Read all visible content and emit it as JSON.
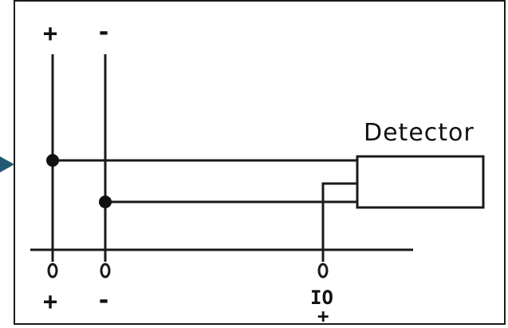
{
  "diagram": {
    "top_left_sign": "+",
    "top_right_sign": "-",
    "bottom_left_sign": "+",
    "bottom_right_sign": "-",
    "detector_label": "Detector",
    "io_label": "IO",
    "io_sign": "+"
  },
  "colors": {
    "line": "#1a1a1a",
    "pointer_arrow": "#1f5a72",
    "background": "#ffffff"
  }
}
